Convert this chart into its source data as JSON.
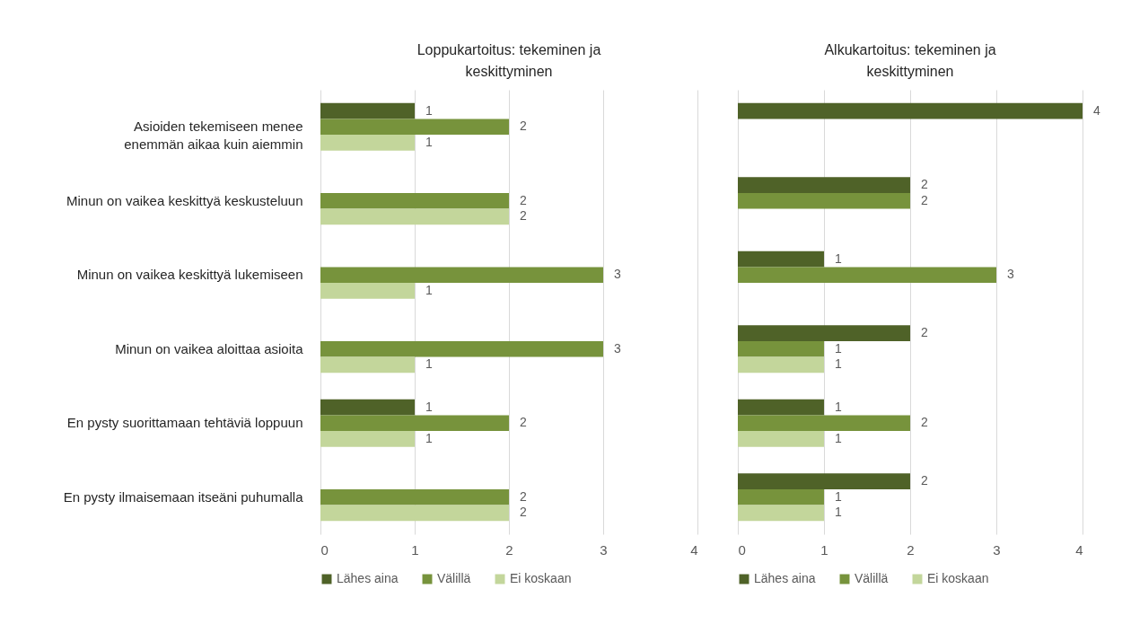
{
  "chart_data": [
    {
      "type": "bar",
      "orientation": "horizontal",
      "title": "Loppukartoitus: tekeminen ja keskittyminen",
      "categories": [
        "Asioiden tekemiseen menee enemmän aikaa kuin aiemmin",
        "Minun on vaikea keskittyä keskusteluun",
        "Minun on vaikea keskittyä lukemiseen",
        "Minun on vaikea aloittaa asioita",
        "En pysty suorittamaan tehtäviä loppuun",
        "En pysty ilmaisemaan itseäni puhumalla"
      ],
      "series": [
        {
          "name": "Lähes aina",
          "color": "#4f6228",
          "values": [
            1,
            null,
            null,
            null,
            1,
            null
          ]
        },
        {
          "name": "Välillä",
          "color": "#77933c",
          "values": [
            2,
            2,
            3,
            3,
            2,
            2
          ]
        },
        {
          "name": "Ei koskaan",
          "color": "#c3d69b",
          "values": [
            1,
            2,
            1,
            1,
            1,
            2
          ]
        }
      ],
      "xlim": [
        0,
        4
      ],
      "xticks": [
        0,
        1,
        2,
        3,
        4
      ],
      "grid": "x",
      "legend": "bottom",
      "data_labels": true
    },
    {
      "type": "bar",
      "orientation": "horizontal",
      "title": "Alkukartoitus: tekeminen ja keskittyminen",
      "categories": [
        null,
        null,
        null,
        null,
        null,
        null
      ],
      "series": [
        {
          "name": "Lähes aina",
          "color": "#4f6228",
          "values": [
            4,
            2,
            1,
            2,
            1,
            2
          ]
        },
        {
          "name": "Välillä",
          "color": "#77933c",
          "values": [
            null,
            2,
            3,
            1,
            2,
            1
          ]
        },
        {
          "name": "Ei koskaan",
          "color": "#c3d69b",
          "values": [
            null,
            null,
            null,
            1,
            1,
            1
          ]
        }
      ],
      "xlim": [
        0,
        4
      ],
      "xticks": [
        0,
        1,
        2,
        3,
        4
      ],
      "grid": "x",
      "legend": "bottom",
      "data_labels": true,
      "tick_labels": "x"
    }
  ]
}
